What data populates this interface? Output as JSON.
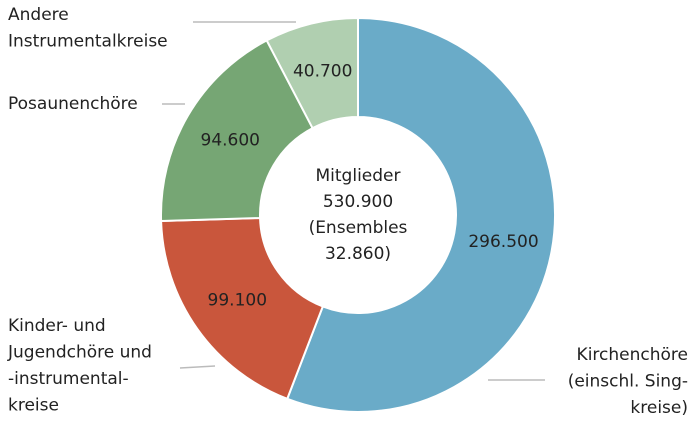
{
  "chart_data": {
    "type": "donut",
    "categories": [
      [
        "Kirchenchöre",
        "(einschl. Sing-",
        "kreise)"
      ],
      [
        "Kinder- und",
        "Jugendchöre und",
        "-instrumental-",
        "kreise"
      ],
      [
        "Posaunenchöre"
      ],
      [
        "Andere",
        "Instrumentalkreise"
      ]
    ],
    "values": [
      296500,
      99100,
      94600,
      40700
    ],
    "value_labels": [
      "296.500",
      "99.100",
      "94.600",
      "40.700"
    ],
    "colors": [
      "#6aabc8",
      "#c9563c",
      "#76a674",
      "#b0cfb0"
    ],
    "center_label": [
      "Mitglieder",
      "530.900",
      "(Ensembles",
      "32.860)"
    ]
  }
}
